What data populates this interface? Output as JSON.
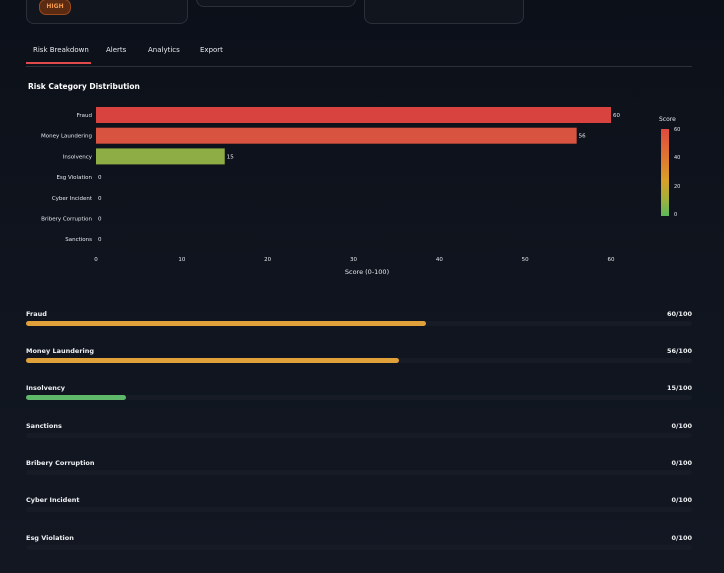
{
  "header": {
    "risk_badge": "HIGH",
    "colors": {
      "high_badge": "#f39a4a"
    }
  },
  "tabs": [
    {
      "label": "Risk Breakdown",
      "active": true
    },
    {
      "label": "Alerts"
    },
    {
      "label": "Analytics"
    },
    {
      "label": "Export"
    }
  ],
  "chart": {
    "title": "Risk Category Distribution"
  },
  "chart_data": {
    "type": "bar",
    "orientation": "horizontal",
    "categories": [
      "Fraud",
      "Money Laundering",
      "Insolvency",
      "Esg Violation",
      "Cyber Incident",
      "Bribery Corruption",
      "Sanctions"
    ],
    "values": [
      60,
      56,
      15,
      0,
      0,
      0,
      0
    ],
    "bar_colors": [
      "#d9433f",
      "#d85340",
      "#8fad45",
      "#5cb85c",
      "#5cb85c",
      "#5cb85c",
      "#5cb85c"
    ],
    "xlabel": "Score (0-100)",
    "xlim": [
      0,
      65
    ],
    "xticks": [
      0,
      10,
      20,
      30,
      40,
      50,
      60
    ],
    "data_labels": true,
    "legend": {
      "title": "Score",
      "ticks": [
        60,
        40,
        20,
        0
      ],
      "placement": "right",
      "type": "colorbar"
    },
    "grid": false
  },
  "progress": [
    {
      "label": "Fraud",
      "value": 60,
      "text": "60/100",
      "color": "#e0a13a"
    },
    {
      "label": "Money Laundering",
      "value": 56,
      "text": "56/100",
      "color": "#e0a13a"
    },
    {
      "label": "Insolvency",
      "value": 15,
      "text": "15/100",
      "color": "#5fb86a"
    },
    {
      "label": "Sanctions",
      "value": 0,
      "text": "0/100",
      "color": "#5fb86a"
    },
    {
      "label": "Bribery Corruption",
      "value": 0,
      "text": "0/100",
      "color": "#5fb86a"
    },
    {
      "label": "Cyber Incident",
      "value": 0,
      "text": "0/100",
      "color": "#5fb86a"
    },
    {
      "label": "Esg Violation",
      "value": 0,
      "text": "0/100",
      "color": "#5fb86a"
    }
  ]
}
